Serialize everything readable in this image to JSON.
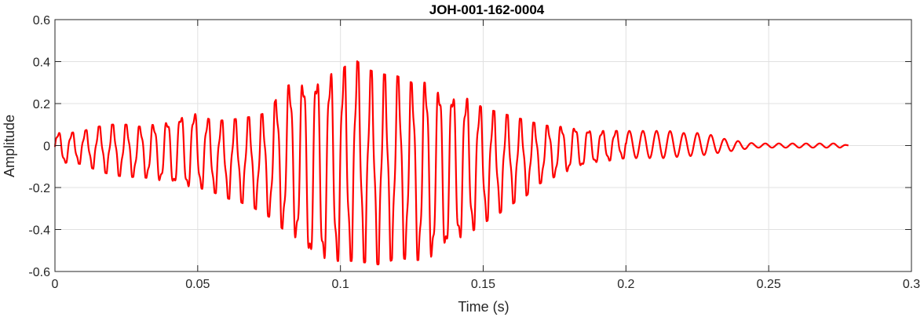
{
  "chart_data": {
    "type": "line",
    "title": "JOH-001-162-0004",
    "xlabel": "Time (s)",
    "ylabel": "Amplitude",
    "xlim": [
      0,
      0.3
    ],
    "ylim": [
      -0.6,
      0.6
    ],
    "grid": true,
    "x_ticks": [
      0,
      0.05,
      0.1,
      0.15,
      0.2,
      0.25,
      0.3
    ],
    "x_tick_labels": [
      "0",
      "0.05",
      "0.1",
      "0.15",
      "0.2",
      "0.25",
      "0.3"
    ],
    "y_ticks": [
      -0.6,
      -0.4,
      -0.2,
      0,
      0.2,
      0.4,
      0.6
    ],
    "y_tick_labels": [
      "-0.6",
      "-0.4",
      "-0.2",
      "0",
      "0.2",
      "0.4",
      "0.6"
    ],
    "series": [
      {
        "color": "#ff0000",
        "x": [
          0.0,
          0.005,
          0.01,
          0.015,
          0.02,
          0.025,
          0.03,
          0.035,
          0.04,
          0.045,
          0.05,
          0.055,
          0.06,
          0.065,
          0.07,
          0.075,
          0.08,
          0.085,
          0.09,
          0.095,
          0.1,
          0.105,
          0.11,
          0.115,
          0.12,
          0.125,
          0.13,
          0.135,
          0.14,
          0.145,
          0.15,
          0.155,
          0.16,
          0.165,
          0.17,
          0.175,
          0.18,
          0.185,
          0.19,
          0.195,
          0.2,
          0.205,
          0.21,
          0.215,
          0.22,
          0.225,
          0.23,
          0.235,
          0.24,
          0.245,
          0.25,
          0.255,
          0.26,
          0.265,
          0.27,
          0.275,
          0.278
        ],
        "envelope_upper": [
          0.06,
          0.06,
          0.07,
          0.09,
          0.1,
          0.1,
          0.09,
          0.1,
          0.12,
          0.15,
          0.15,
          0.12,
          0.12,
          0.13,
          0.14,
          0.16,
          0.28,
          0.3,
          0.33,
          0.33,
          0.36,
          0.41,
          0.36,
          0.34,
          0.33,
          0.3,
          0.3,
          0.27,
          0.25,
          0.22,
          0.18,
          0.16,
          0.14,
          0.12,
          0.1,
          0.09,
          0.09,
          0.08,
          0.07,
          0.07,
          0.07,
          0.07,
          0.07,
          0.07,
          0.06,
          0.06,
          0.05,
          0.03,
          0.02,
          0.01,
          0.01,
          0.01,
          0.01,
          0.01,
          0.01,
          0.01,
          0.0
        ],
        "envelope_lower": [
          -0.09,
          -0.08,
          -0.09,
          -0.12,
          -0.14,
          -0.15,
          -0.15,
          -0.16,
          -0.18,
          -0.2,
          -0.2,
          -0.22,
          -0.25,
          -0.27,
          -0.3,
          -0.34,
          -0.4,
          -0.45,
          -0.56,
          -0.55,
          -0.55,
          -0.55,
          -0.56,
          -0.57,
          -0.53,
          -0.55,
          -0.54,
          -0.52,
          -0.47,
          -0.42,
          -0.37,
          -0.33,
          -0.28,
          -0.24,
          -0.18,
          -0.15,
          -0.12,
          -0.1,
          -0.08,
          -0.07,
          -0.06,
          -0.06,
          -0.06,
          -0.06,
          -0.05,
          -0.05,
          -0.04,
          -0.03,
          -0.02,
          -0.01,
          -0.01,
          -0.01,
          -0.01,
          -0.01,
          -0.01,
          -0.01,
          0.0
        ],
        "oscillation_frequency_hz": 210
      }
    ]
  }
}
